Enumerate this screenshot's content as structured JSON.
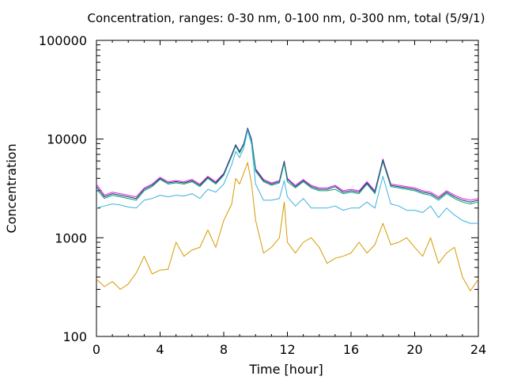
{
  "chart_data": {
    "type": "line",
    "title": "Concentration, ranges: 0-30 nm, 0-100 nm, 0-300 nm, total (5/9/1)",
    "xlabel": "Time [hour]",
    "ylabel": "Concentration",
    "xlim": [
      0,
      24
    ],
    "ylim": [
      100,
      100000
    ],
    "yscale": "log",
    "xticks": [
      "0",
      "4",
      "8",
      "12",
      "16",
      "20",
      "24"
    ],
    "yticks": [
      "100",
      "1000",
      "10000",
      "100000"
    ],
    "grid": false,
    "x": [
      0,
      0.5,
      1,
      1.5,
      2,
      2.5,
      3,
      3.5,
      4,
      4.5,
      5,
      5.5,
      6,
      6.5,
      7,
      7.5,
      8,
      8.5,
      8.75,
      9,
      9.25,
      9.5,
      9.75,
      10,
      10.5,
      11,
      11.5,
      11.8,
      12,
      12.5,
      13,
      13.5,
      14,
      14.5,
      15,
      15.5,
      16,
      16.5,
      17,
      17.5,
      18,
      18.5,
      19,
      19.5,
      20,
      20.5,
      21,
      21.5,
      22,
      22.5,
      23,
      23.5,
      24
    ],
    "series": [
      {
        "color": "#e51ee5",
        "values": [
          3500,
          2700,
          2900,
          2800,
          2700,
          2600,
          3200,
          3500,
          4100,
          3700,
          3800,
          3700,
          3900,
          3500,
          4200,
          3700,
          4500,
          7000,
          8800,
          7500,
          9000,
          13000,
          10000,
          5000,
          3900,
          3600,
          3800,
          6000,
          4000,
          3400,
          3900,
          3400,
          3200,
          3200,
          3400,
          3000,
          3100,
          3000,
          3700,
          3000,
          6300,
          3500,
          3400,
          3300,
          3200,
          3000,
          2900,
          2600,
          3000,
          2700,
          2500,
          2400,
          2500
        ]
      },
      {
        "color": "#0a3a6a",
        "values": [
          3300,
          2600,
          2800,
          2700,
          2600,
          2500,
          3100,
          3400,
          4000,
          3600,
          3700,
          3600,
          3800,
          3400,
          4100,
          3600,
          4400,
          6900,
          8700,
          7400,
          8900,
          12800,
          9800,
          4900,
          3800,
          3500,
          3700,
          5900,
          3900,
          3300,
          3800,
          3300,
          3100,
          3100,
          3300,
          2900,
          3000,
          2900,
          3600,
          2900,
          6100,
          3400,
          3300,
          3200,
          3100,
          2900,
          2800,
          2500,
          2900,
          2600,
          2400,
          2300,
          2400
        ]
      },
      {
        "color": "#009e73",
        "values": [
          3100,
          2500,
          2700,
          2600,
          2500,
          2400,
          3000,
          3300,
          3900,
          3500,
          3600,
          3500,
          3700,
          3300,
          4000,
          3500,
          4300,
          6700,
          8500,
          7200,
          8700,
          12600,
          9600,
          4700,
          3700,
          3400,
          3600,
          5700,
          3700,
          3200,
          3700,
          3200,
          3000,
          3000,
          3100,
          2800,
          2900,
          2800,
          3500,
          2800,
          5900,
          3300,
          3200,
          3100,
          3000,
          2800,
          2700,
          2400,
          2800,
          2500,
          2300,
          2200,
          2300
        ]
      },
      {
        "color": "#3cb0e0",
        "values": [
          2000,
          2100,
          2200,
          2150,
          2050,
          2000,
          2400,
          2500,
          2700,
          2600,
          2700,
          2650,
          2800,
          2500,
          3100,
          2900,
          3500,
          5500,
          7500,
          6500,
          8000,
          12200,
          8800,
          3500,
          2400,
          2400,
          2500,
          3800,
          2600,
          2100,
          2500,
          2000,
          2000,
          2000,
          2100,
          1900,
          2000,
          2000,
          2300,
          2000,
          4200,
          2200,
          2100,
          1900,
          1900,
          1800,
          2100,
          1600,
          2000,
          1700,
          1500,
          1400,
          1400
        ]
      },
      {
        "color": "#d69a00",
        "values": [
          380,
          320,
          360,
          300,
          340,
          440,
          650,
          430,
          470,
          480,
          900,
          650,
          750,
          800,
          1200,
          800,
          1500,
          2200,
          4000,
          3500,
          4500,
          5800,
          3500,
          1500,
          700,
          800,
          1000,
          2300,
          900,
          700,
          900,
          1000,
          800,
          550,
          620,
          650,
          700,
          900,
          700,
          850,
          1400,
          850,
          900,
          1000,
          800,
          650,
          1000,
          550,
          700,
          800,
          400,
          290,
          380
        ]
      }
    ]
  }
}
